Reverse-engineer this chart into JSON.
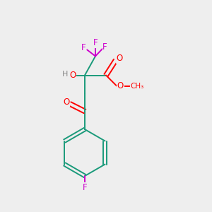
{
  "background_color": "#eeeeee",
  "atom_colors": {
    "C": "#1a9a7a",
    "O": "#ff0000",
    "F": "#cc00cc",
    "H": "#888888"
  },
  "figsize": [
    3.0,
    3.0
  ],
  "dpi": 100,
  "lw": 1.4,
  "fontsize": 8.5
}
